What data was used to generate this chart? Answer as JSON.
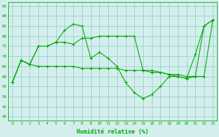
{
  "xlabel": "Humidité relative (%)",
  "xlim": [
    -0.5,
    23.5
  ],
  "ylim": [
    38,
    97
  ],
  "yticks": [
    40,
    45,
    50,
    55,
    60,
    65,
    70,
    75,
    80,
    85,
    90,
    95
  ],
  "xticks": [
    0,
    1,
    2,
    3,
    4,
    5,
    6,
    7,
    8,
    9,
    10,
    11,
    12,
    13,
    14,
    15,
    16,
    17,
    18,
    19,
    20,
    21,
    22,
    23
  ],
  "background_color": "#d4eeee",
  "grid_color": "#88ccbb",
  "line_color": "#00aa00",
  "line1_x": [
    0,
    1,
    2,
    3,
    4,
    5,
    6,
    7,
    8,
    9,
    10,
    11,
    12,
    13,
    14,
    15,
    16,
    17,
    18,
    19,
    20,
    21,
    22,
    23
  ],
  "line1_y": [
    57,
    68,
    66,
    75,
    75,
    77,
    83,
    86,
    85,
    69,
    72,
    69,
    65,
    57,
    52,
    49,
    51,
    55,
    60,
    60,
    59,
    71,
    85,
    88
  ],
  "line2_x": [
    0,
    1,
    2,
    3,
    4,
    5,
    6,
    7,
    8,
    9,
    10,
    11,
    12,
    13,
    14,
    15,
    16,
    17,
    18,
    19,
    20,
    21,
    22,
    23
  ],
  "line2_y": [
    57,
    68,
    66,
    75,
    75,
    77,
    77,
    76,
    79,
    79,
    80,
    80,
    80,
    80,
    80,
    63,
    63,
    62,
    61,
    60,
    59,
    60,
    85,
    88
  ],
  "line3_x": [
    0,
    1,
    2,
    3,
    4,
    5,
    6,
    7,
    8,
    9,
    10,
    11,
    12,
    13,
    14,
    15,
    16,
    17,
    18,
    19,
    20,
    21,
    22,
    23
  ],
  "line3_y": [
    57,
    68,
    66,
    65,
    65,
    65,
    65,
    65,
    64,
    64,
    64,
    64,
    64,
    63,
    63,
    63,
    62,
    62,
    61,
    61,
    60,
    60,
    60,
    88
  ]
}
